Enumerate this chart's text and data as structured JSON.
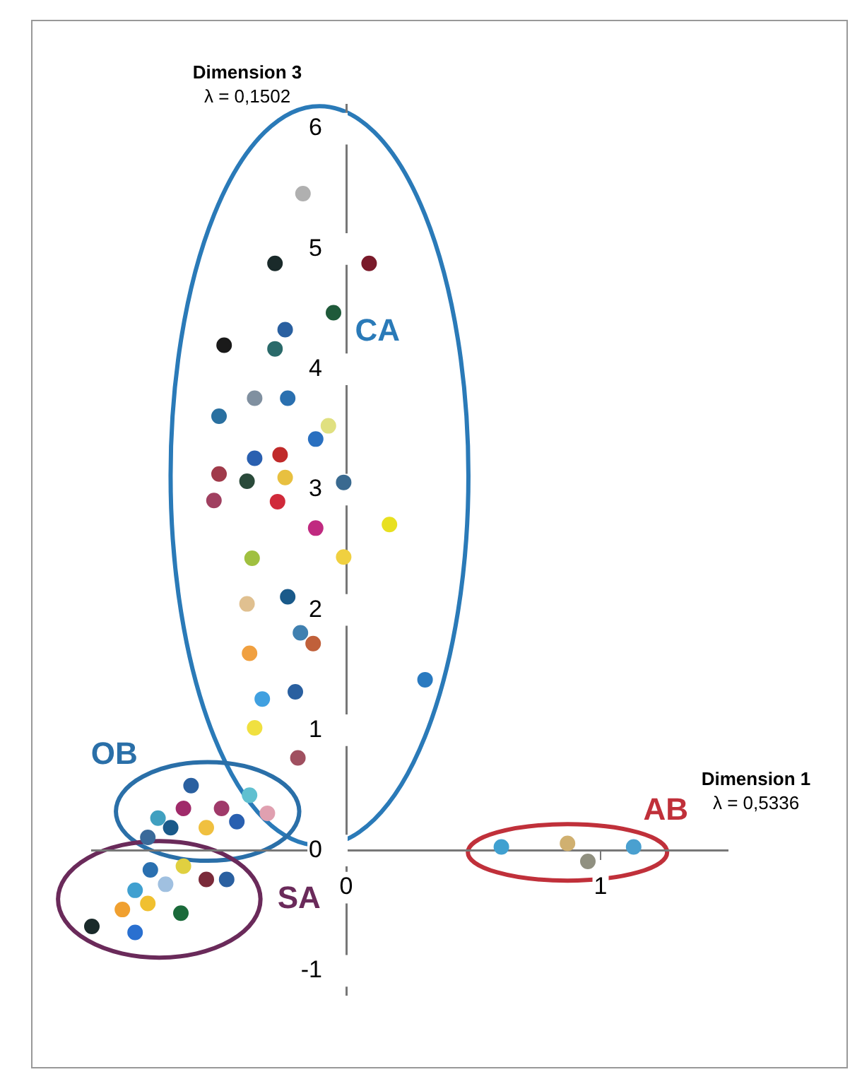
{
  "chart_data": {
    "type": "scatter",
    "xlabel": "Dimension 1\nλ = 0,5336",
    "ylabel": "Dimension 3\nλ = 0,1502",
    "xlim": [
      -1.0,
      1.5
    ],
    "ylim": [
      -1.2,
      6.2
    ],
    "xticks": [
      0,
      1
    ],
    "yticks": [
      -1,
      0,
      1,
      2,
      3,
      4,
      5,
      6
    ],
    "marker": "circle",
    "grid": false,
    "legend": false,
    "annotations": [
      "CA",
      "AB",
      "OB",
      "SA"
    ],
    "series": [
      {
        "color": "#2a7ab8",
        "x": [
          0.09,
          -0.05,
          -0.17,
          0.17,
          0.31,
          -0.01,
          -0.01,
          -0.07,
          -0.12,
          -0.12,
          -0.13,
          -0.18,
          -0.28,
          -0.28,
          -0.24,
          -0.23,
          -0.36,
          -0.26,
          -0.24,
          -0.27,
          -0.23,
          -0.2,
          -0.36,
          -0.39,
          -0.37,
          -0.39,
          -0.38,
          -0.33,
          -0.48,
          -0.5,
          -0.5,
          -0.52,
          -0.19,
          -0.36
        ],
        "values": [
          4.88,
          4.47,
          5.46,
          2.71,
          1.42,
          3.06,
          2.44,
          3.53,
          3.42,
          2.68,
          1.72,
          1.81,
          4.88,
          4.17,
          4.33,
          3.76,
          3.76,
          3.29,
          3.1,
          2.9,
          2.11,
          1.32,
          3.26,
          3.07,
          2.43,
          2.05,
          1.64,
          1.26,
          4.2,
          3.61,
          3.13,
          2.91,
          0.77,
          1.02
        ],
        "colors": [
          "#7a1a2a",
          "#1f5a3a",
          "#b0b0b0",
          "#e8e020",
          "#2a7ac0",
          "#3a6a90",
          "#f0d040",
          "#e0e080",
          "#2a70c0",
          "#c02a80",
          "#c0603a",
          "#4080b0",
          "#1a2a2a",
          "#2a6a6a",
          "#2a60a0",
          "#2a70b0",
          "#8090a0",
          "#c02a2a",
          "#e8c040",
          "#d02a3a",
          "#1a5a8a",
          "#2a60a0",
          "#2a60b0",
          "#2a4a3a",
          "#a0c040",
          "#e0c090",
          "#f0a040",
          "#40a0e0",
          "#1a1a1a",
          "#2a70a0",
          "#a03a4a",
          "#a04060",
          "#a05060",
          "#f0e040"
        ]
      },
      {
        "color": "#c0303a",
        "x": [
          1.13,
          0.95,
          0.87,
          0.61
        ],
        "values": [
          0.03,
          -0.09,
          0.06,
          0.03
        ],
        "colors": [
          "#4aa0d0",
          "#909080",
          "#d0b070",
          "#40a0d0"
        ]
      },
      {
        "color": "#2a6fa8",
        "x": [
          -0.31,
          -0.38,
          -0.43,
          -0.49,
          -0.55,
          -0.61,
          -0.64,
          -0.69,
          -0.74,
          -0.78
        ],
        "values": [
          0.31,
          0.46,
          0.24,
          0.35,
          0.19,
          0.54,
          0.35,
          0.19,
          0.27,
          0.11
        ],
        "colors": [
          "#e0a0b0",
          "#60c0d0",
          "#2a60b0",
          "#a03a6a",
          "#f0c040",
          "#2a60a0",
          "#a02a6a",
          "#1a5a8a",
          "#40a0c0",
          "#3a6a9a"
        ]
      },
      {
        "color": "#6a2a5a",
        "x": [
          -0.47,
          -0.55,
          -0.64,
          -0.65,
          -0.71,
          -0.77,
          -0.78,
          -0.83,
          -0.83,
          -0.88,
          -1.0
        ],
        "values": [
          -0.24,
          -0.24,
          -0.13,
          -0.52,
          -0.28,
          -0.16,
          -0.44,
          -0.33,
          -0.68,
          -0.49,
          -0.63
        ],
        "colors": [
          "#2a60a0",
          "#7a2a3a",
          "#e0d040",
          "#1a6a3a",
          "#a0c0e0",
          "#2a70b0",
          "#f0c030",
          "#40a0d0",
          "#2a70d0",
          "#f0a030",
          "#1a2a2a"
        ]
      }
    ]
  }
}
